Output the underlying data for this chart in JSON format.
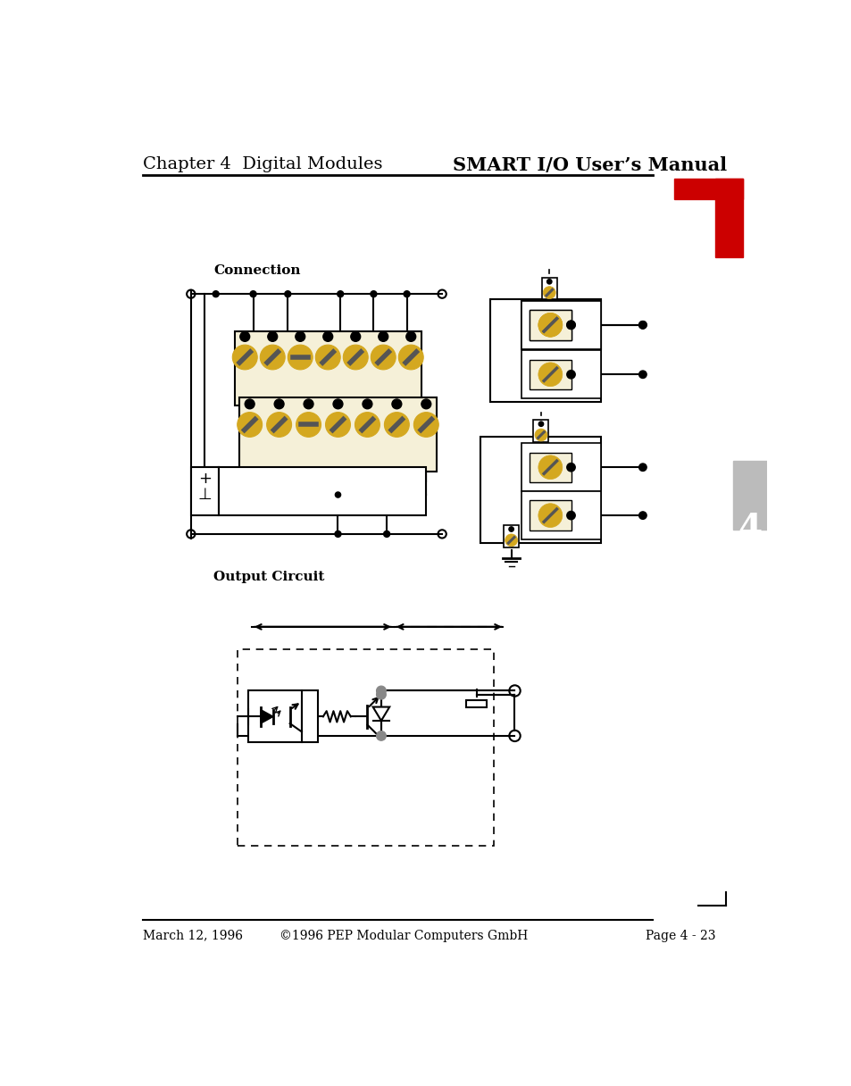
{
  "title_left": "Chapter 4  Digital Modules",
  "title_right": "SMART I/O User’s Manual",
  "section1": "Connection",
  "section2": "Output Circuit",
  "footer_left": "March 12, 1996",
  "footer_center": "©1996 PEP Modular Computers GmbH",
  "footer_right": "Page 4 - 23",
  "bg_color": "#ffffff",
  "text_color": "#000000",
  "red_color": "#cc0000",
  "gold_color": "#d4a820",
  "cream_color": "#f5f0d8",
  "gray_color": "#888888",
  "dark_gray": "#555555",
  "tab4_color": "#bbbbbb"
}
